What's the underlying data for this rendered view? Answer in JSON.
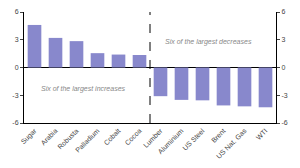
{
  "chart_data": {
    "type": "bar",
    "categories": [
      "Sugar",
      "Arabia",
      "Robusta",
      "Palladium",
      "Cobalt",
      "Cocoa",
      "Lumber",
      "Aluminium",
      "US Steel",
      "Brent",
      "US Nat. Gas",
      "WTI"
    ],
    "values": [
      4.6,
      3.2,
      2.85,
      1.55,
      1.4,
      1.35,
      -3.1,
      -3.5,
      -3.55,
      -4.1,
      -4.2,
      -4.3
    ],
    "color": "#8888CC",
    "ylim": [
      -6,
      6
    ],
    "yticks": [
      -6,
      -3,
      0,
      3,
      6
    ],
    "y2lim": [
      -6,
      6
    ],
    "y2ticks": [
      -6,
      -3,
      0,
      3,
      6
    ],
    "annotations": [
      "Six of the largest increases",
      "Six of the largest decreases"
    ],
    "grid": false
  }
}
